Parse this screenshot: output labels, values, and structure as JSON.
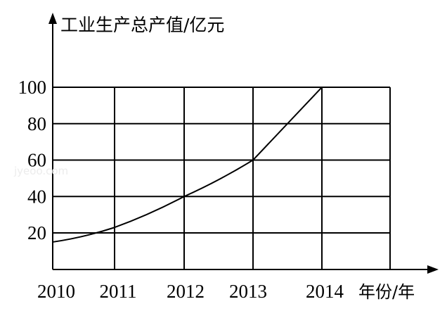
{
  "chart_data": {
    "type": "line",
    "ylabel": "工业生产总产值/亿元",
    "xlabel": "年份/年",
    "watermark": "jyeoo.com",
    "categories": [
      "2010",
      "2011",
      "2012",
      "2013",
      "2014"
    ],
    "x": [
      2010,
      2011,
      2012,
      2013,
      2014
    ],
    "y_ticks": [
      "20",
      "40",
      "60",
      "80",
      "100"
    ],
    "ylim": [
      15,
      100
    ],
    "grid": true,
    "series": [
      {
        "values": [
          15,
          23,
          40,
          60,
          100
        ]
      }
    ]
  }
}
